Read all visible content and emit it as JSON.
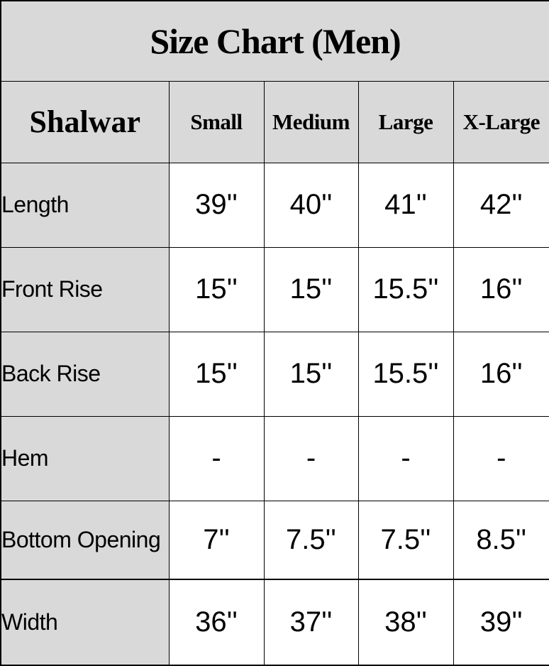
{
  "chart_data": {
    "type": "table",
    "title": "Size Chart (Men)",
    "row_header": "Shalwar",
    "columns": [
      "Small",
      "Medium",
      "Large",
      "X-Large"
    ],
    "rows": [
      {
        "label": "Length",
        "values": [
          "39''",
          "40''",
          "41''",
          "42''"
        ]
      },
      {
        "label": "Front Rise",
        "values": [
          "15''",
          "15''",
          "15.5''",
          "16''"
        ]
      },
      {
        "label": "Back Rise",
        "values": [
          "15''",
          "15''",
          "15.5''",
          "16''"
        ]
      },
      {
        "label": "Hem",
        "values": [
          "-",
          "-",
          "-",
          "-"
        ]
      },
      {
        "label": "Bottom Opening",
        "values": [
          "7''",
          "7.5''",
          "7.5''",
          "8.5''"
        ]
      },
      {
        "label": "Width",
        "values": [
          "36''",
          "37''",
          "38''",
          "39''"
        ]
      }
    ]
  },
  "colors": {
    "header_bg": "#d9d9d9",
    "cell_bg": "#ffffff",
    "border": "#000000",
    "text": "#000000"
  }
}
